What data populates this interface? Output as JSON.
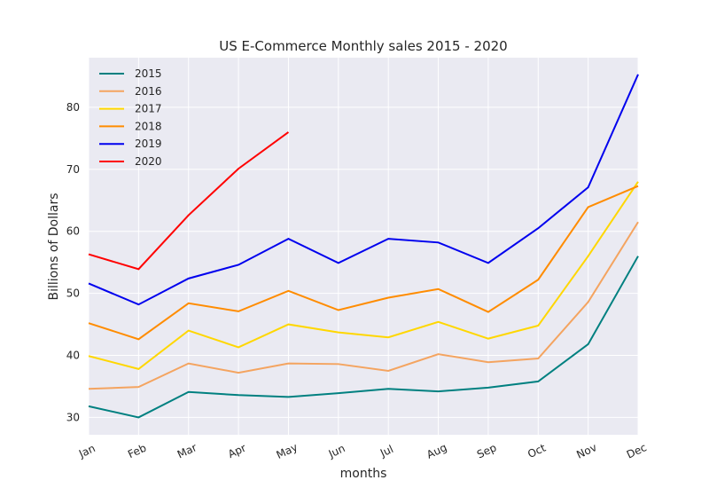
{
  "chart_data": {
    "type": "line",
    "title": "US E-Commerce Monthly sales 2015 - 2020",
    "x_label": "months",
    "y_label": "Billions of Dollars",
    "categories": [
      "Jan",
      "Feb",
      "Mar",
      "Apr",
      "May",
      "Jun",
      "Jul",
      "Aug",
      "Sep",
      "Oct",
      "Nov",
      "Dec"
    ],
    "series": [
      {
        "name": "2015",
        "color": "#008080",
        "values": [
          31.8,
          30.0,
          34.1,
          33.6,
          33.3,
          33.9,
          34.6,
          34.2,
          34.8,
          35.8,
          41.8,
          56.0
        ]
      },
      {
        "name": "2016",
        "color": "#f4a460",
        "values": [
          34.6,
          34.9,
          38.7,
          37.2,
          38.7,
          38.6,
          37.5,
          40.2,
          38.9,
          39.5,
          48.6,
          61.5
        ]
      },
      {
        "name": "2017",
        "color": "#ffd700",
        "values": [
          39.9,
          37.8,
          44.0,
          41.3,
          45.0,
          43.7,
          42.9,
          45.4,
          42.7,
          44.8,
          56.0,
          68.0
        ]
      },
      {
        "name": "2018",
        "color": "#ff8c00",
        "values": [
          45.2,
          42.6,
          48.4,
          47.1,
          50.4,
          47.3,
          49.3,
          50.7,
          47.0,
          52.2,
          63.9,
          67.3
        ]
      },
      {
        "name": "2019",
        "color": "#0000ee",
        "values": [
          51.6,
          48.2,
          52.4,
          54.6,
          58.8,
          54.9,
          58.8,
          58.2,
          54.9,
          60.5,
          67.1,
          85.3
        ]
      },
      {
        "name": "2020",
        "color": "#ff0000",
        "values": [
          56.3,
          53.9,
          62.6,
          70.1,
          76.0,
          null,
          null,
          null,
          null,
          null,
          null,
          null
        ]
      }
    ],
    "ylim": [
      27.2,
      88
    ],
    "yticks": [
      30,
      40,
      50,
      60,
      70,
      80
    ],
    "grid": true,
    "legend": "upper-left"
  }
}
